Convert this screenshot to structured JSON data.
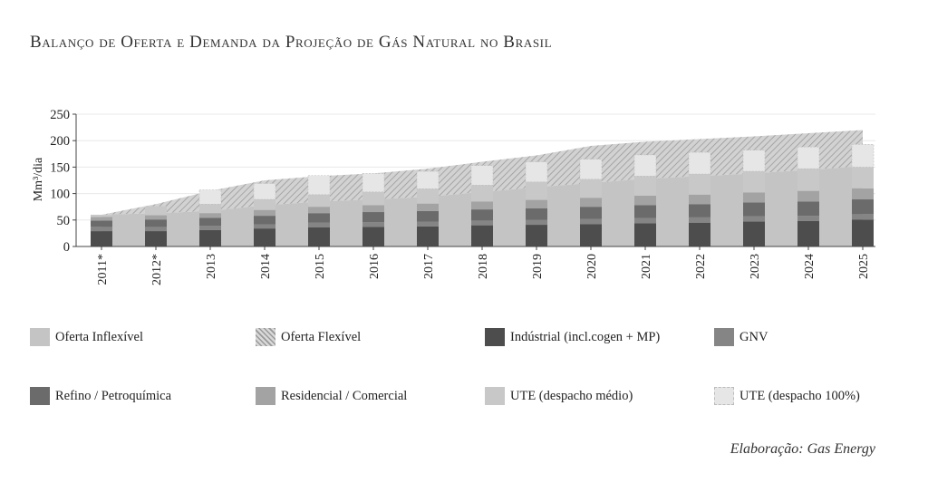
{
  "title": "Balanço de Oferta e Demanda da Projeção de Gás Natural no Brasil",
  "credit": "Elaboração: Gas Energy",
  "legend": [
    {
      "label": "Oferta Inflexível",
      "key": "oferta_inflexivel"
    },
    {
      "label": "Oferta Flexível",
      "key": "oferta_flexivel"
    },
    {
      "label": "Indústrial (incl.cogen + MP)",
      "key": "industrial"
    },
    {
      "label": "GNV",
      "key": "gnv"
    },
    {
      "label": "Refino / Petroquímica",
      "key": "refino"
    },
    {
      "label": "Residencial / Comercial",
      "key": "residencial"
    },
    {
      "label": "UTE (despacho médio)",
      "key": "ute_medio"
    },
    {
      "label": "UTE (despacho 100%)",
      "key": "ute_100"
    }
  ],
  "colors": {
    "oferta_inflexivel": "#c4c4c4",
    "oferta_flexivel": "#b4b4b4",
    "industrial": "#4d4d4d",
    "gnv": "#858585",
    "refino": "#6b6b6b",
    "residencial": "#a3a3a3",
    "ute_medio": "#c8c8c8",
    "ute_100": "#e6e6e6"
  },
  "chart_data": {
    "type": "bar",
    "ylabel": "Mm³/dia",
    "ylim": [
      0,
      250
    ],
    "yticks": [
      0,
      50,
      100,
      150,
      200,
      250
    ],
    "categories": [
      "2011*",
      "2012*",
      "2013",
      "2014",
      "2015",
      "2016",
      "2017",
      "2018",
      "2019",
      "2020",
      "2021",
      "2022",
      "2023",
      "2024",
      "2025"
    ],
    "area_series": [
      {
        "name": "Oferta Inflexível",
        "values": [
          60,
          63,
          67,
          78,
          85,
          89,
          94,
          103,
          112,
          120,
          128,
          133,
          138,
          145,
          152
        ]
      },
      {
        "name": "Oferta Flexível",
        "values": [
          60,
          80,
          105,
          125,
          133,
          138,
          147,
          160,
          172,
          190,
          198,
          203,
          208,
          214,
          220
        ]
      }
    ],
    "series": [
      {
        "name": "Indústrial (incl.cogen + MP)",
        "values": [
          29,
          29,
          31,
          34,
          36,
          37,
          38,
          40,
          41,
          42,
          44,
          45,
          47,
          48,
          51
        ]
      },
      {
        "name": "GNV",
        "values": [
          8,
          8,
          8,
          8,
          9,
          9,
          9,
          9,
          9,
          10,
          10,
          10,
          10,
          10,
          10
        ]
      },
      {
        "name": "Refino / Petroquímica",
        "values": [
          12,
          14,
          15,
          16,
          18,
          19,
          20,
          21,
          22,
          23,
          24,
          25,
          26,
          27,
          28
        ]
      },
      {
        "name": "Residencial / Comercial",
        "values": [
          7,
          8,
          9,
          11,
          12,
          13,
          14,
          15,
          16,
          17,
          18,
          18,
          19,
          20,
          21
        ]
      },
      {
        "name": "UTE (despacho médio)",
        "values": [
          4,
          17,
          17,
          20,
          23,
          25,
          28,
          31,
          34,
          35,
          37,
          39,
          40,
          42,
          40
        ]
      },
      {
        "name": "UTE (despacho 100%)",
        "values": [
          0,
          0,
          27,
          30,
          36,
          35,
          33,
          37,
          38,
          38,
          40,
          41,
          40,
          41,
          43
        ]
      }
    ]
  }
}
